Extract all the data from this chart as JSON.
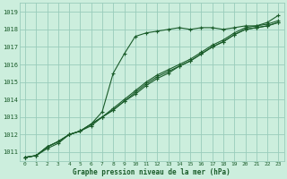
{
  "title": "Graphe pression niveau de la mer (hPa)",
  "bg_color": "#cceedd",
  "grid_color": "#99ccbb",
  "line_color": "#1a5c2a",
  "xlim": [
    -0.5,
    23.5
  ],
  "ylim": [
    1010.5,
    1019.5
  ],
  "yticks": [
    1011,
    1012,
    1013,
    1014,
    1015,
    1016,
    1017,
    1018,
    1019
  ],
  "xticks": [
    0,
    1,
    2,
    3,
    4,
    5,
    6,
    7,
    8,
    9,
    10,
    11,
    12,
    13,
    14,
    15,
    16,
    17,
    18,
    19,
    20,
    21,
    22,
    23
  ],
  "series": [
    [
      1010.7,
      1010.8,
      1011.2,
      1011.5,
      1012.0,
      1012.2,
      1012.6,
      1013.3,
      1015.5,
      1016.6,
      1017.6,
      1017.8,
      1017.9,
      1018.0,
      1018.1,
      1018.0,
      1018.1,
      1018.1,
      1018.0,
      1018.1,
      1018.2,
      1018.2,
      1018.4,
      1018.8
    ],
    [
      1010.7,
      1010.8,
      1011.3,
      1011.6,
      1012.0,
      1012.2,
      1012.6,
      1013.0,
      1013.5,
      1014.0,
      1014.5,
      1015.0,
      1015.4,
      1015.7,
      1016.0,
      1016.3,
      1016.7,
      1017.1,
      1017.4,
      1017.8,
      1018.1,
      1018.2,
      1018.3,
      1018.5
    ],
    [
      1010.7,
      1010.8,
      1011.3,
      1011.6,
      1012.0,
      1012.2,
      1012.6,
      1013.0,
      1013.4,
      1013.9,
      1014.4,
      1014.9,
      1015.3,
      1015.6,
      1015.9,
      1016.2,
      1016.6,
      1017.0,
      1017.3,
      1017.7,
      1018.0,
      1018.1,
      1018.2,
      1018.4
    ],
    [
      1010.7,
      1010.8,
      1011.3,
      1011.6,
      1012.0,
      1012.2,
      1012.5,
      1013.0,
      1013.4,
      1013.9,
      1014.3,
      1014.8,
      1015.2,
      1015.5,
      1015.9,
      1016.2,
      1016.6,
      1017.0,
      1017.3,
      1017.7,
      1018.0,
      1018.1,
      1018.2,
      1018.4
    ]
  ]
}
